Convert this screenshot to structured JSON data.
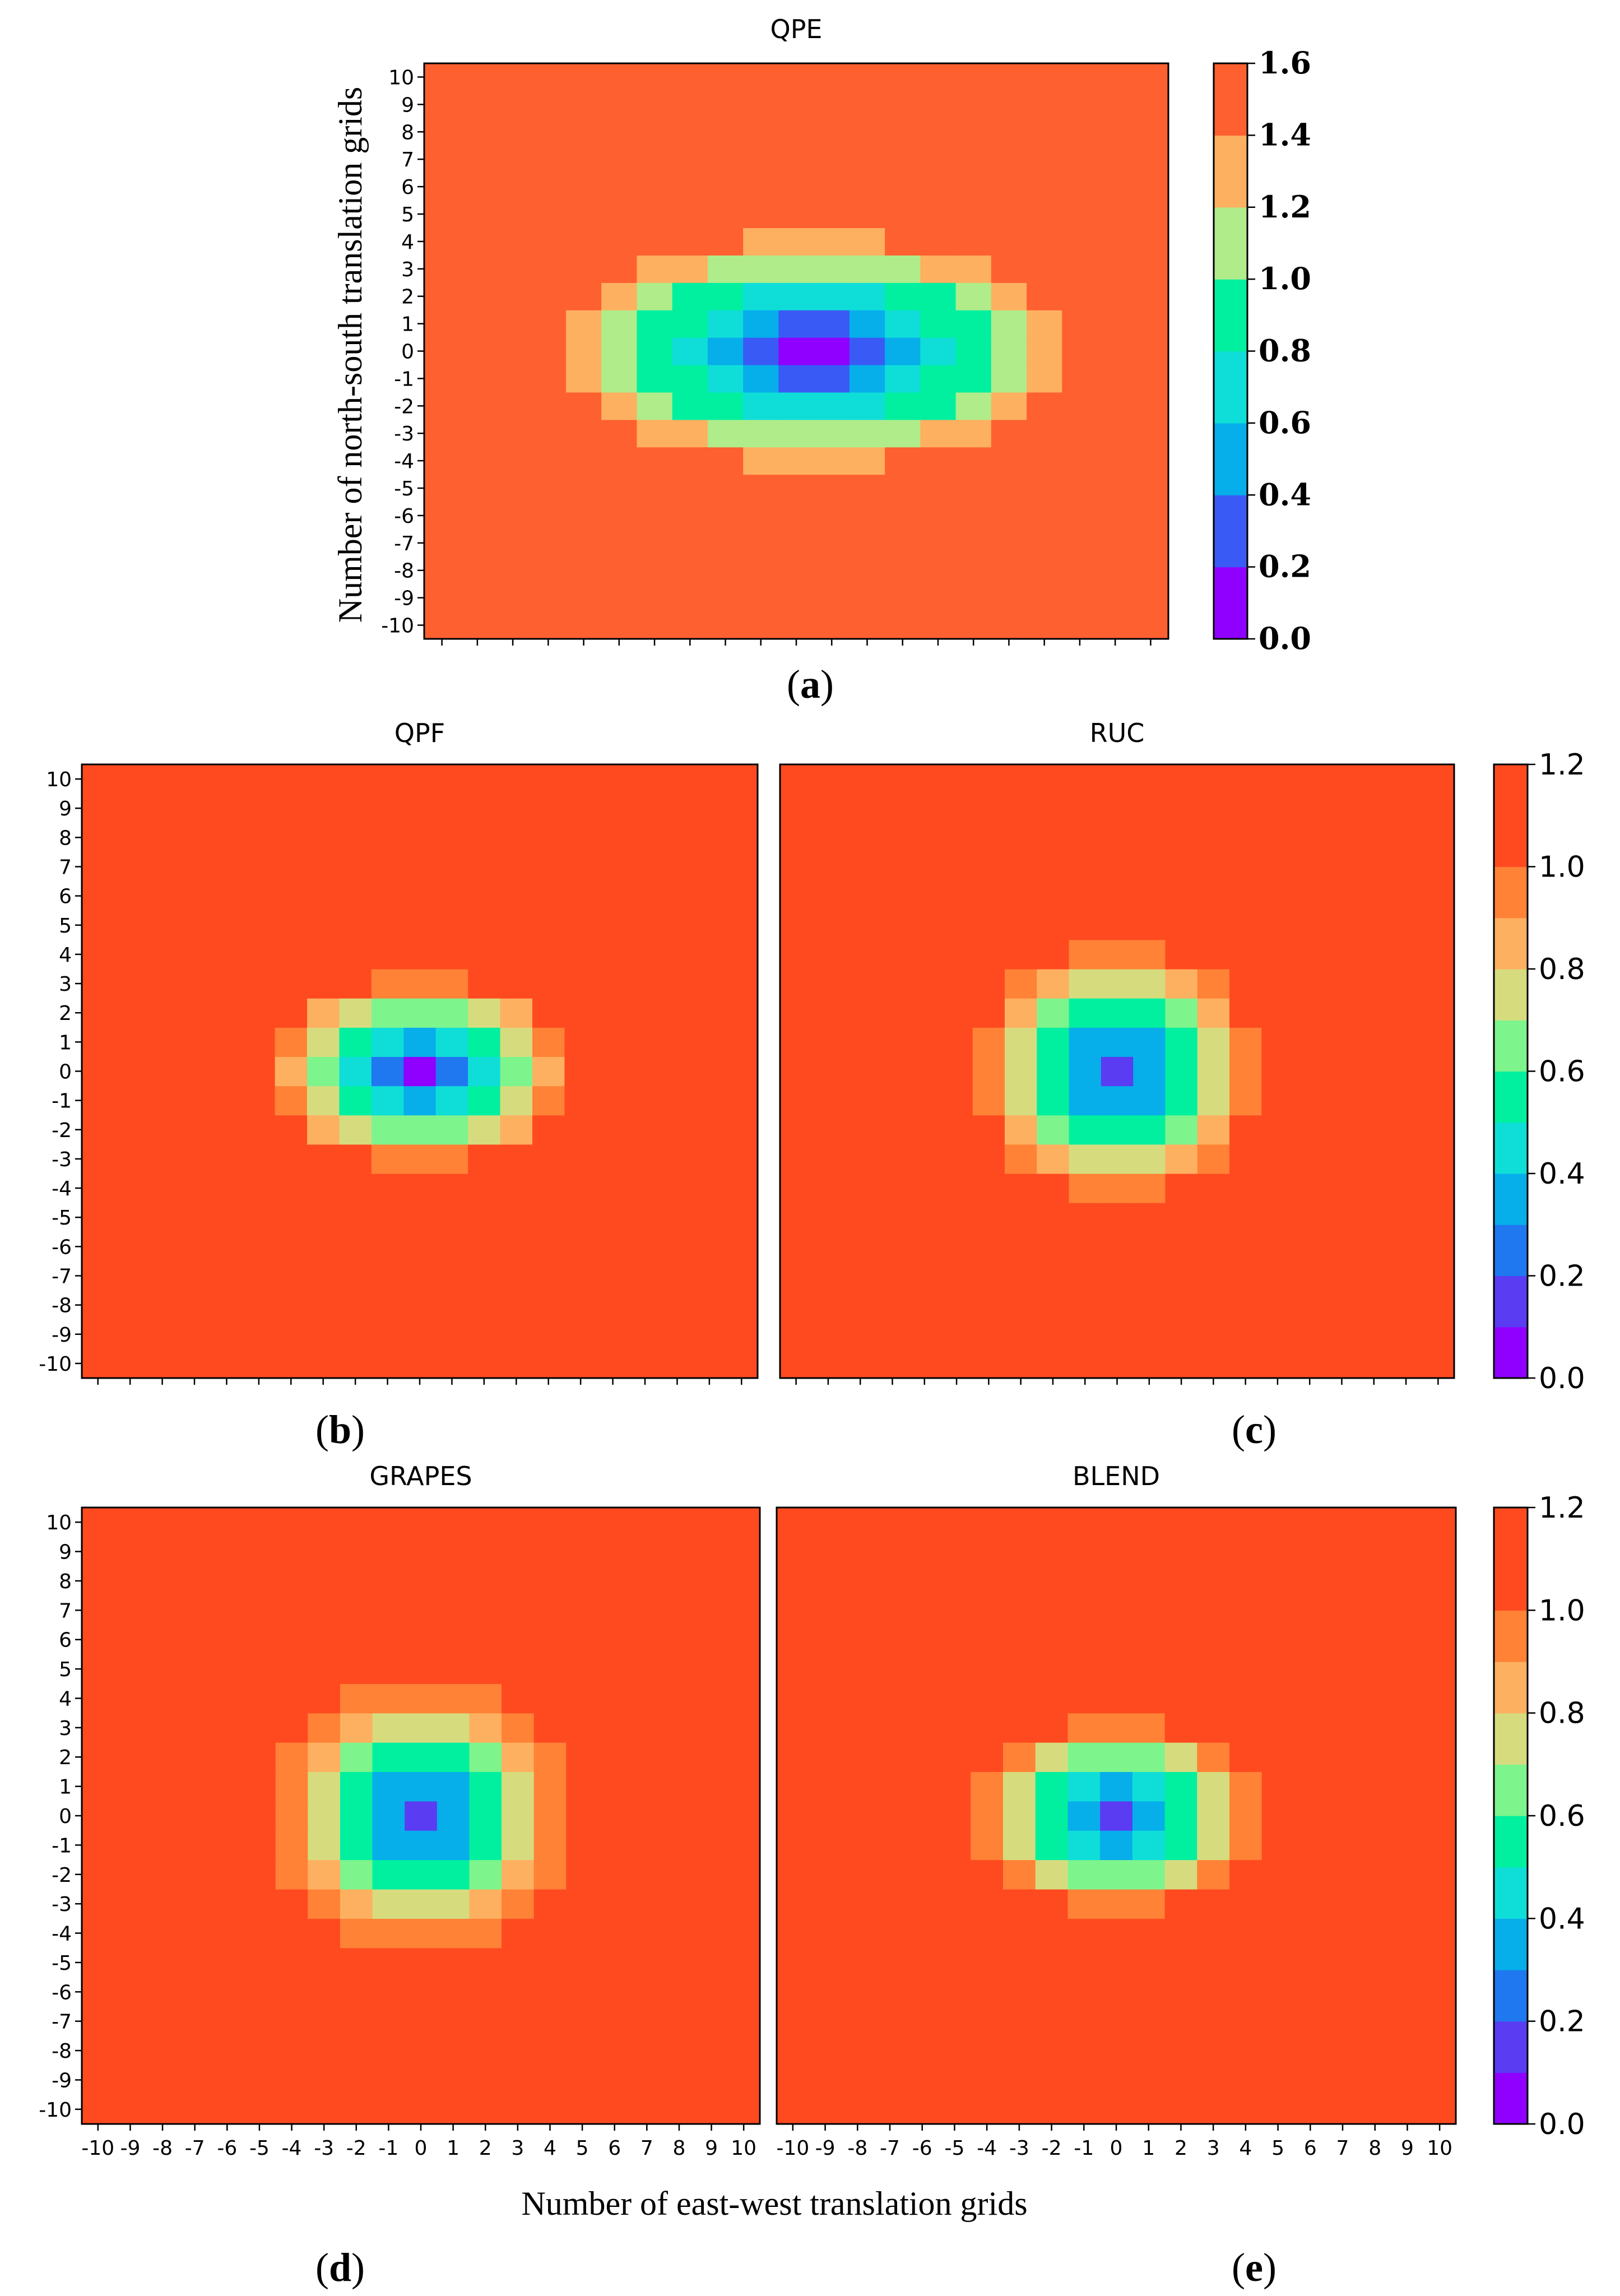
{
  "figure": {
    "panel_letters": [
      "a",
      "b",
      "c",
      "d",
      "e"
    ],
    "ylabel": "Number of north-south translation grids",
    "xlabel": "Number of east-west translation grids"
  },
  "palette": [
    "#8f00ff",
    "#5a3cf2",
    "#1f78f0",
    "#06aeea",
    "#0fded8",
    "#00f0a0",
    "#7ef48c",
    "#d6dc7e",
    "#fdb060",
    "#ff8236",
    "#ff4a20"
  ],
  "chart_data": [
    {
      "id": "a",
      "type": "heatmap",
      "title": "QPE",
      "x": [
        -10,
        -9,
        -8,
        -7,
        -6,
        -5,
        -4,
        -3,
        -2,
        -1,
        0,
        1,
        2,
        3,
        4,
        5,
        6,
        7,
        8,
        9,
        10
      ],
      "y": [
        -10,
        -9,
        -8,
        -7,
        -6,
        -5,
        -4,
        -3,
        -2,
        -1,
        0,
        1,
        2,
        3,
        4,
        5,
        6,
        7,
        8,
        9,
        10
      ],
      "xticklabels_shown": false,
      "colorbar": {
        "levels": [
          0.0,
          0.2,
          0.4,
          0.6,
          0.8,
          1.0,
          1.2,
          1.4,
          1.6
        ],
        "ticks": [
          "0.0",
          "0.2",
          "0.4",
          "0.6",
          "0.8",
          "1.0",
          "1.2",
          "1.4",
          "1.6"
        ],
        "colors": [
          "#8f00ff",
          "#3a5af5",
          "#06aeea",
          "#0fded8",
          "#00f0a0",
          "#b0ec8a",
          "#fdb060",
          "#ff6030"
        ]
      },
      "model": {
        "cx": 0.5,
        "cy": 0.0,
        "base": 0.05,
        "ax": 0.004,
        "ay": 0.011
      }
    },
    {
      "id": "b",
      "type": "heatmap",
      "title": "QPF",
      "x": [
        -10,
        -9,
        -8,
        -7,
        -6,
        -5,
        -4,
        -3,
        -2,
        -1,
        0,
        1,
        2,
        3,
        4,
        5,
        6,
        7,
        8,
        9,
        10
      ],
      "y": [
        -10,
        -9,
        -8,
        -7,
        -6,
        -5,
        -4,
        -3,
        -2,
        -1,
        0,
        1,
        2,
        3,
        4,
        5,
        6,
        7,
        8,
        9,
        10
      ],
      "xticklabels_shown": false,
      "colorbar": {
        "levels": [
          0.0,
          0.1,
          0.2,
          0.3,
          0.4,
          0.5,
          0.6,
          0.7,
          0.8,
          0.9,
          1.0,
          1.1,
          1.2
        ],
        "ticks": [
          "0.0",
          "0.2",
          "0.4",
          "0.6",
          "0.8",
          "1.0",
          "1.2"
        ]
      },
      "model": {
        "cx": 0.0,
        "cy": 0.0,
        "base": 0.05,
        "ax": 0.0045,
        "ay": 0.0085
      }
    },
    {
      "id": "c",
      "type": "heatmap",
      "title": "RUC",
      "x": [
        -10,
        -9,
        -8,
        -7,
        -6,
        -5,
        -4,
        -3,
        -2,
        -1,
        0,
        1,
        2,
        3,
        4,
        5,
        6,
        7,
        8,
        9,
        10
      ],
      "y": [
        -10,
        -9,
        -8,
        -7,
        -6,
        -5,
        -4,
        -3,
        -2,
        -1,
        0,
        1,
        2,
        3,
        4,
        5,
        6,
        7,
        8,
        9,
        10
      ],
      "xticklabels_shown": false,
      "colorbar": {
        "levels": [
          0.0,
          0.1,
          0.2,
          0.3,
          0.4,
          0.5,
          0.6,
          0.7,
          0.8,
          0.9,
          1.0,
          1.1,
          1.2
        ],
        "ticks": [
          "0.0",
          "0.2",
          "0.4",
          "0.6",
          "0.8",
          "1.0",
          "1.2"
        ]
      },
      "model": {
        "cx": 0.0,
        "cy": 0.0,
        "base": 0.1,
        "ax": 0.0045,
        "ay": 0.0042
      }
    },
    {
      "id": "d",
      "type": "heatmap",
      "title": "GRAPES",
      "x": [
        -10,
        -9,
        -8,
        -7,
        -6,
        -5,
        -4,
        -3,
        -2,
        -1,
        0,
        1,
        2,
        3,
        4,
        5,
        6,
        7,
        8,
        9,
        10
      ],
      "y": [
        -10,
        -9,
        -8,
        -7,
        -6,
        -5,
        -4,
        -3,
        -2,
        -1,
        0,
        1,
        2,
        3,
        4,
        5,
        6,
        7,
        8,
        9,
        10
      ],
      "xticklabels_shown": true,
      "colorbar": {
        "levels": [
          0.0,
          0.1,
          0.2,
          0.3,
          0.4,
          0.5,
          0.6,
          0.7,
          0.8,
          0.9,
          1.0,
          1.1,
          1.2
        ],
        "ticks": [
          "0.0",
          "0.2",
          "0.4",
          "0.6",
          "0.8",
          "1.0",
          "1.2"
        ]
      },
      "model": {
        "cx": 0.0,
        "cy": 0.0,
        "base": 0.1,
        "ax": 0.0042,
        "ay": 0.0042
      }
    },
    {
      "id": "e",
      "type": "heatmap",
      "title": "BLEND",
      "x": [
        -10,
        -9,
        -8,
        -7,
        -6,
        -5,
        -4,
        -3,
        -2,
        -1,
        0,
        1,
        2,
        3,
        4,
        5,
        6,
        7,
        8,
        9,
        10
      ],
      "y": [
        -10,
        -9,
        -8,
        -7,
        -6,
        -5,
        -4,
        -3,
        -2,
        -1,
        0,
        1,
        2,
        3,
        4,
        5,
        6,
        7,
        8,
        9,
        10
      ],
      "xticklabels_shown": true,
      "colorbar": {
        "levels": [
          0.0,
          0.1,
          0.2,
          0.3,
          0.4,
          0.5,
          0.6,
          0.7,
          0.8,
          0.9,
          1.0,
          1.1,
          1.2
        ],
        "ticks": [
          "0.0",
          "0.2",
          "0.4",
          "0.6",
          "0.8",
          "1.0",
          "1.2"
        ]
      },
      "model": {
        "cx": 0.0,
        "cy": 0.0,
        "base": 0.1,
        "ax": 0.0045,
        "ay": 0.008
      }
    }
  ]
}
